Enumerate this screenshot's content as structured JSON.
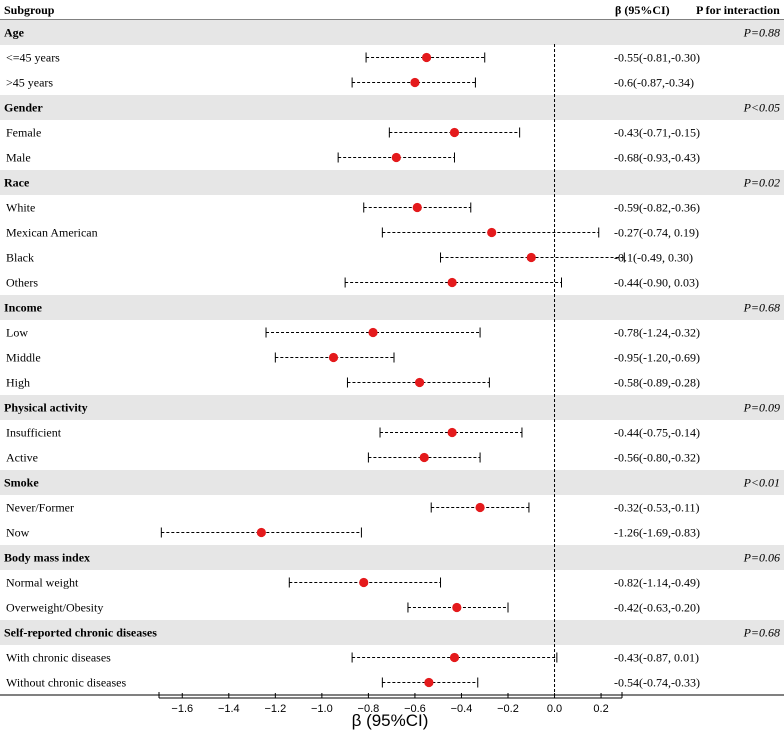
{
  "header": {
    "subgroup": "Subgroup",
    "beta": "β (95%CI)",
    "p_interaction": "P for interaction"
  },
  "chart_data": {
    "type": "forest",
    "xlabel": "β (95%CI)",
    "xlim": [
      -1.7,
      0.29
    ],
    "x_ticks": [
      -1.6,
      -1.4,
      -1.2,
      -1.0,
      -0.8,
      -0.6,
      -0.4,
      -0.2,
      0.0,
      0.2
    ],
    "x_tick_labels": [
      "−1.6",
      "−1.4",
      "−1.2",
      "−1.0",
      "−0.8",
      "−0.6",
      "−0.4",
      "−0.2",
      "0.0",
      "0.2"
    ],
    "reference_line": 0.0,
    "point_color": "#e41a1c",
    "group_band_color": "#e6e6e6",
    "groups": [
      {
        "name": "Age",
        "p": "P=0.88",
        "rows": [
          {
            "label": "<=45 years",
            "beta": -0.55,
            "lower": -0.81,
            "upper": -0.3,
            "ci_text": "-0.55(-0.81,-0.30)"
          },
          {
            "label": ">45 years",
            "beta": -0.6,
            "lower": -0.87,
            "upper": -0.34,
            "ci_text": "-0.6(-0.87,-0.34)"
          }
        ]
      },
      {
        "name": "Gender",
        "p": "P<0.05",
        "rows": [
          {
            "label": "Female",
            "beta": -0.43,
            "lower": -0.71,
            "upper": -0.15,
            "ci_text": "-0.43(-0.71,-0.15)"
          },
          {
            "label": "Male",
            "beta": -0.68,
            "lower": -0.93,
            "upper": -0.43,
            "ci_text": "-0.68(-0.93,-0.43)"
          }
        ]
      },
      {
        "name": "Race",
        "p": "P=0.02",
        "rows": [
          {
            "label": "White",
            "beta": -0.59,
            "lower": -0.82,
            "upper": -0.36,
            "ci_text": "-0.59(-0.82,-0.36)"
          },
          {
            "label": "Mexican American",
            "beta": -0.27,
            "lower": -0.74,
            "upper": 0.19,
            "ci_text": "-0.27(-0.74, 0.19)"
          },
          {
            "label": "Black",
            "beta": -0.1,
            "lower": -0.49,
            "upper": 0.3,
            "ci_text": "-0.1(-0.49, 0.30)"
          },
          {
            "label": "Others",
            "beta": -0.44,
            "lower": -0.9,
            "upper": 0.03,
            "ci_text": "-0.44(-0.90, 0.03)"
          }
        ]
      },
      {
        "name": "Income",
        "p": "P=0.68",
        "rows": [
          {
            "label": "Low",
            "beta": -0.78,
            "lower": -1.24,
            "upper": -0.32,
            "ci_text": "-0.78(-1.24,-0.32)"
          },
          {
            "label": "Middle",
            "beta": -0.95,
            "lower": -1.2,
            "upper": -0.69,
            "ci_text": "-0.95(-1.20,-0.69)"
          },
          {
            "label": "High",
            "beta": -0.58,
            "lower": -0.89,
            "upper": -0.28,
            "ci_text": "-0.58(-0.89,-0.28)"
          }
        ]
      },
      {
        "name": "Physical activity",
        "p": "P=0.09",
        "rows": [
          {
            "label": "Insufficient",
            "beta": -0.44,
            "lower": -0.75,
            "upper": -0.14,
            "ci_text": "-0.44(-0.75,-0.14)"
          },
          {
            "label": "Active",
            "beta": -0.56,
            "lower": -0.8,
            "upper": -0.32,
            "ci_text": "-0.56(-0.80,-0.32)"
          }
        ]
      },
      {
        "name": "Smoke",
        "p": "P<0.01",
        "rows": [
          {
            "label": "Never/Former",
            "beta": -0.32,
            "lower": -0.53,
            "upper": -0.11,
            "ci_text": "-0.32(-0.53,-0.11)"
          },
          {
            "label": "Now",
            "beta": -1.26,
            "lower": -1.69,
            "upper": -0.83,
            "ci_text": "-1.26(-1.69,-0.83)"
          }
        ]
      },
      {
        "name": "Body mass index",
        "p": "P=0.06",
        "rows": [
          {
            "label": "Normal weight",
            "beta": -0.82,
            "lower": -1.14,
            "upper": -0.49,
            "ci_text": "-0.82(-1.14,-0.49)"
          },
          {
            "label": "Overweight/Obesity",
            "beta": -0.42,
            "lower": -0.63,
            "upper": -0.2,
            "ci_text": "-0.42(-0.63,-0.20)"
          }
        ]
      },
      {
        "name": "Self-reported chronic diseases",
        "p": "P=0.68",
        "rows": [
          {
            "label": "With chronic diseases",
            "beta": -0.43,
            "lower": -0.87,
            "upper": 0.01,
            "ci_text": "-0.43(-0.87, 0.01)"
          },
          {
            "label": "Without chronic diseases",
            "beta": -0.54,
            "lower": -0.74,
            "upper": -0.33,
            "ci_text": "-0.54(-0.74,-0.33)"
          }
        ]
      }
    ]
  }
}
